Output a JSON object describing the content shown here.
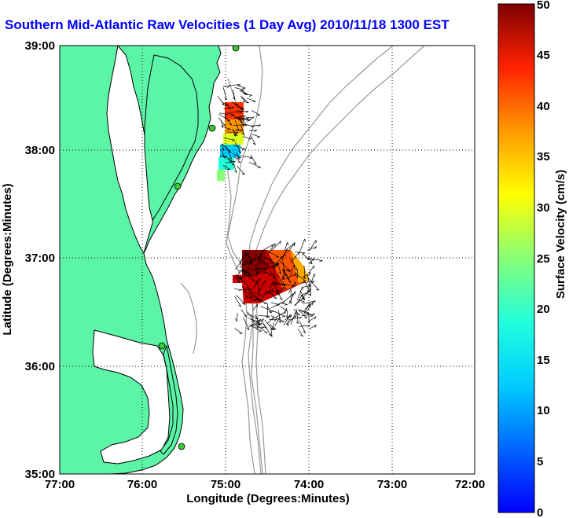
{
  "title": "Southern Mid-Atlantic Raw Velocities (1 Day Avg) 2010/11/18 1300 EST",
  "map": {
    "x_axis_label": "Longitude (Degrees:Minutes)",
    "y_axis_label": "Latitude (Degrees:Minutes)",
    "lon_ticks": [
      "77:00",
      "76:00",
      "75:00",
      "74:00",
      "73:00",
      "72:00"
    ],
    "lat_ticks": [
      "39:00",
      "38:00",
      "37:00",
      "36:00",
      "35:00"
    ],
    "lon_range": [
      -77,
      -72
    ],
    "lat_range": [
      35,
      39
    ],
    "grid": "dotted",
    "land_color": "#5cf5a8",
    "coastline_color": "#000000",
    "bathymetry_color": "#999999",
    "station_color": "#33cc33"
  },
  "colorbar": {
    "label": "Surface Velocity (cm/s)",
    "range": [
      0,
      50
    ],
    "ticks": [
      "50",
      "45",
      "40",
      "35",
      "30",
      "25",
      "20",
      "15",
      "10",
      "5",
      "0"
    ],
    "colormap": "jet"
  }
}
